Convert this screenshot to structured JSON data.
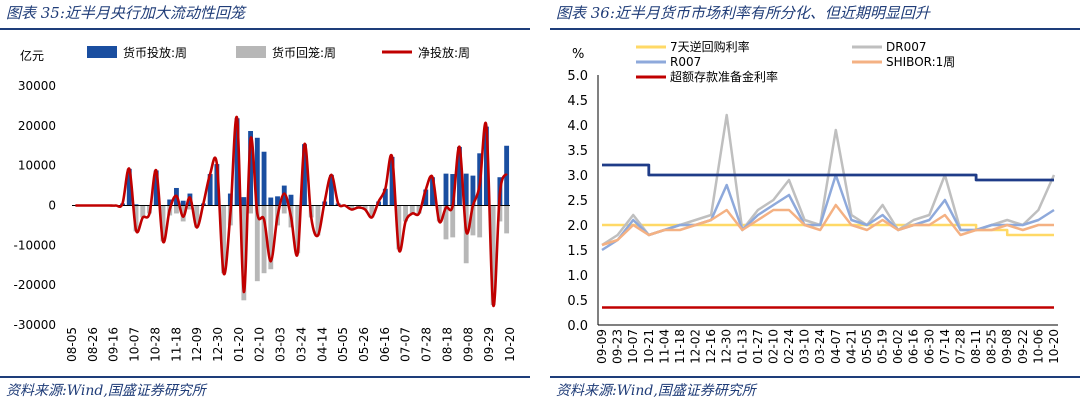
{
  "left_panel": {
    "title": "图表 35:近半月央行加大流动性回笼",
    "source": "资料来源:Wind,国盛证券研究所"
  },
  "right_panel": {
    "title": "图表 36:近半月货币市场利率有所分化、但近期明显回升",
    "source": "资料来源:Wind,国盛证券研究所"
  },
  "chart_data": [
    {
      "type": "bar",
      "ylabel": "亿元",
      "ylim": [
        -30000,
        30000
      ],
      "yticks": [
        -30000,
        -20000,
        -10000,
        0,
        10000,
        20000,
        30000
      ],
      "x_tick_labels": [
        "08-05",
        "08-26",
        "09-16",
        "10-07",
        "10-28",
        "11-18",
        "12-09",
        "12-30",
        "01-20",
        "02-10",
        "03-03",
        "03-24",
        "04-14",
        "05-05",
        "05-26",
        "06-16",
        "07-07",
        "07-28",
        "08-18",
        "09-08",
        "09-29",
        "10-20"
      ],
      "legend_position": "top",
      "colors": {
        "injection": "#1a4ea0",
        "withdrawal": "#b7b7b7",
        "net": "#c00000"
      },
      "series": [
        {
          "name": "货币投放:周",
          "kind": "bar",
          "values": [
            0,
            0,
            0,
            0,
            0,
            0,
            0,
            500,
            9200,
            300,
            0,
            0,
            8800,
            0,
            1500,
            4400,
            1200,
            3000,
            0,
            500,
            7900,
            10400,
            0,
            3000,
            21900,
            2100,
            18700,
            17000,
            13500,
            2000,
            2300,
            5000,
            2700,
            0,
            15400,
            0,
            0,
            1000,
            7700,
            500,
            0,
            0,
            0,
            0,
            0,
            1000,
            4200,
            12200,
            0,
            0,
            0,
            0,
            4000,
            7100,
            0,
            8000,
            7900,
            14700,
            8000,
            7500,
            13100,
            19800,
            0,
            7100,
            15000
          ]
        },
        {
          "name": "货币回笼:周",
          "kind": "bar",
          "values": [
            0,
            0,
            0,
            0,
            0,
            0,
            0,
            0,
            0,
            -6500,
            -3000,
            -2000,
            0,
            -9000,
            -2500,
            -2000,
            -4000,
            -1000,
            -5500,
            0,
            0,
            0,
            -17000,
            -5000,
            0,
            -23800,
            -2000,
            -19000,
            -17000,
            -16000,
            -5000,
            -2000,
            -5500,
            -12000,
            0,
            -3000,
            -7500,
            0,
            0,
            0,
            0,
            -1000,
            -500,
            -1000,
            -3000,
            0,
            0,
            0,
            -11000,
            -4000,
            -2000,
            -2000,
            0,
            0,
            -4000,
            -8500,
            -8000,
            0,
            -14500,
            -7500,
            -8000,
            0,
            -25000,
            -4000,
            -7000
          ]
        },
        {
          "name": "净投放:周",
          "kind": "line",
          "values": [
            0,
            0,
            0,
            0,
            0,
            0,
            0,
            500,
            9200,
            -6200,
            -3000,
            -2000,
            8800,
            -9000,
            -1000,
            2400,
            -2800,
            2000,
            -5500,
            500,
            7900,
            10400,
            -17000,
            -2000,
            21900,
            -21700,
            16700,
            -2000,
            -3500,
            -14000,
            -2700,
            3000,
            -2800,
            -12000,
            15400,
            -3000,
            -7500,
            1000,
            7700,
            500,
            0,
            -1000,
            -500,
            -1000,
            -3000,
            1000,
            4200,
            12200,
            -11000,
            -4000,
            -2000,
            -2000,
            4000,
            7100,
            -4000,
            -500,
            -100,
            14700,
            -6500,
            0,
            5100,
            19800,
            -25000,
            3100,
            8000
          ]
        }
      ]
    },
    {
      "type": "line",
      "ylabel": "%",
      "ylim": [
        0.0,
        5.0
      ],
      "yticks": [
        "0.0",
        "0.5",
        "1.0",
        "1.5",
        "2.0",
        "2.5",
        "3.0",
        "3.5",
        "4.0",
        "4.5",
        "5.0"
      ],
      "x_tick_labels": [
        "09-09",
        "09-23",
        "10-07",
        "10-21",
        "11-04",
        "11-18",
        "12-02",
        "12-16",
        "12-30",
        "01-13",
        "01-27",
        "02-10",
        "02-24",
        "03-10",
        "03-24",
        "04-07",
        "04-21",
        "05-05",
        "05-19",
        "06-02",
        "06-16",
        "06-30",
        "07-14",
        "07-28",
        "08-11",
        "08-25",
        "09-08",
        "09-22",
        "10-06",
        "10-20"
      ],
      "legend_position": "top",
      "series": [
        {
          "name": "7天逆回购利率",
          "color": "#ffd966",
          "values": [
            2.0,
            2.0,
            2.0,
            2.0,
            2.0,
            2.0,
            2.0,
            2.0,
            2.0,
            2.0,
            2.0,
            2.0,
            2.0,
            2.0,
            2.0,
            2.0,
            2.0,
            2.0,
            2.0,
            2.0,
            2.0,
            2.0,
            2.0,
            2.0,
            1.9,
            1.9,
            1.8,
            1.8,
            1.8,
            1.8
          ]
        },
        {
          "name": "DR007",
          "color": "#bfbfbf",
          "values": [
            1.6,
            1.8,
            2.2,
            1.8,
            1.9,
            2.0,
            2.1,
            2.2,
            4.2,
            1.9,
            2.3,
            2.5,
            2.9,
            2.1,
            2.0,
            3.9,
            2.2,
            2.0,
            2.4,
            1.9,
            2.1,
            2.2,
            3.0,
            1.9,
            1.9,
            2.0,
            2.1,
            2.0,
            2.3,
            3.0
          ]
        },
        {
          "name": "R007",
          "color": "#8ea9db",
          "values": [
            1.5,
            1.7,
            2.1,
            1.8,
            1.9,
            2.0,
            2.0,
            2.1,
            2.8,
            1.9,
            2.2,
            2.4,
            2.6,
            2.0,
            2.0,
            3.0,
            2.1,
            2.0,
            2.2,
            1.9,
            2.0,
            2.1,
            2.5,
            1.9,
            1.9,
            2.0,
            2.0,
            2.0,
            2.1,
            2.3
          ]
        },
        {
          "name": "SHIBOR:1周",
          "color": "#f4b183",
          "values": [
            1.6,
            1.7,
            2.0,
            1.8,
            1.9,
            1.9,
            2.0,
            2.1,
            2.3,
            1.9,
            2.1,
            2.3,
            2.3,
            2.0,
            1.9,
            2.4,
            2.0,
            1.9,
            2.1,
            1.9,
            2.0,
            2.0,
            2.2,
            1.8,
            1.9,
            1.9,
            2.0,
            1.9,
            2.0,
            2.0
          ]
        },
        {
          "name": "超额存款准备金利率",
          "color": "#c00000",
          "values": [
            0.35,
            0.35,
            0.35,
            0.35,
            0.35,
            0.35,
            0.35,
            0.35,
            0.35,
            0.35,
            0.35,
            0.35,
            0.35,
            0.35,
            0.35,
            0.35,
            0.35,
            0.35,
            0.35,
            0.35,
            0.35,
            0.35,
            0.35,
            0.35,
            0.35,
            0.35,
            0.35,
            0.35,
            0.35,
            0.35
          ]
        },
        {
          "name": "",
          "color": "#1f3c88",
          "values": [
            3.2,
            3.2,
            3.2,
            3.0,
            3.0,
            3.0,
            3.0,
            3.0,
            3.0,
            3.0,
            3.0,
            3.0,
            3.0,
            3.0,
            3.0,
            3.0,
            3.0,
            3.0,
            3.0,
            3.0,
            3.0,
            3.0,
            3.0,
            3.0,
            2.9,
            2.9,
            2.9,
            2.9,
            2.9,
            2.9
          ]
        }
      ]
    }
  ]
}
